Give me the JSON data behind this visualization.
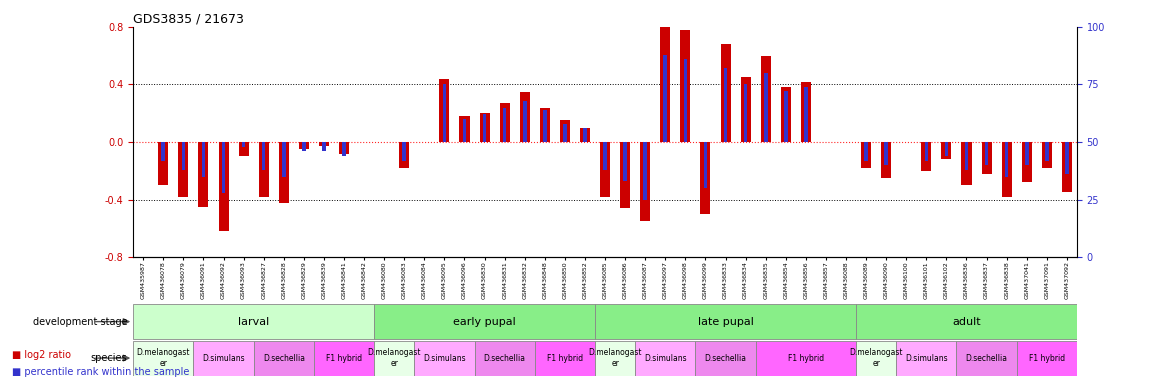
{
  "title": "GDS3835 / 21673",
  "samples": [
    "GSM435987",
    "GSM436078",
    "GSM436079",
    "GSM436091",
    "GSM436092",
    "GSM436093",
    "GSM436827",
    "GSM436828",
    "GSM436829",
    "GSM436839",
    "GSM436841",
    "GSM436842",
    "GSM436080",
    "GSM436083",
    "GSM436084",
    "GSM436095",
    "GSM436096",
    "GSM436830",
    "GSM436831",
    "GSM436832",
    "GSM436848",
    "GSM436850",
    "GSM436852",
    "GSM436085",
    "GSM436086",
    "GSM436087",
    "GSM436097",
    "GSM436098",
    "GSM436099",
    "GSM436833",
    "GSM436834",
    "GSM436835",
    "GSM436854",
    "GSM436856",
    "GSM436857",
    "GSM436088",
    "GSM436089",
    "GSM436090",
    "GSM436100",
    "GSM436101",
    "GSM436102",
    "GSM436836",
    "GSM436837",
    "GSM436838",
    "GSM437041",
    "GSM437091",
    "GSM437092"
  ],
  "log2_ratio": [
    0.0,
    -0.3,
    -0.38,
    -0.45,
    -0.62,
    -0.1,
    -0.38,
    -0.42,
    -0.05,
    -0.03,
    -0.08,
    0.0,
    0.0,
    -0.18,
    0.0,
    0.44,
    0.18,
    0.2,
    0.27,
    0.35,
    0.24,
    0.15,
    0.1,
    -0.38,
    -0.46,
    -0.55,
    0.82,
    0.78,
    -0.5,
    0.68,
    0.45,
    0.6,
    0.38,
    0.42,
    0.0,
    0.0,
    -0.18,
    -0.25,
    0.0,
    -0.2,
    -0.12,
    -0.3,
    -0.22,
    -0.38,
    -0.28,
    -0.18,
    -0.35
  ],
  "percentile": [
    50,
    42,
    38,
    35,
    28,
    48,
    38,
    35,
    46,
    46,
    44,
    50,
    50,
    42,
    50,
    75,
    60,
    62,
    65,
    68,
    64,
    58,
    56,
    38,
    33,
    25,
    88,
    86,
    30,
    82,
    75,
    80,
    72,
    74,
    50,
    50,
    42,
    40,
    50,
    42,
    44,
    38,
    40,
    35,
    40,
    42,
    36
  ],
  "bar_color_red": "#cc0000",
  "bar_color_blue": "#3333cc",
  "ylim": [
    -0.8,
    0.8
  ],
  "y2lim": [
    0,
    100
  ],
  "yticks_left": [
    -0.8,
    -0.4,
    0.0,
    0.4,
    0.8
  ],
  "yticks_right": [
    0,
    25,
    50,
    75,
    100
  ],
  "red_bar_width": 0.5,
  "blue_bar_width": 0.18,
  "dev_stages": [
    {
      "label": "larval",
      "start": 0,
      "end": 12,
      "color": "#ccffcc"
    },
    {
      "label": "early pupal",
      "start": 12,
      "end": 23,
      "color": "#88ee88"
    },
    {
      "label": "late pupal",
      "start": 23,
      "end": 36,
      "color": "#88ee88"
    },
    {
      "label": "adult",
      "start": 36,
      "end": 47,
      "color": "#88ee88"
    }
  ],
  "species_groups": [
    {
      "label": "D.melanogast\ner",
      "start": 0,
      "end": 3,
      "type": "melano"
    },
    {
      "label": "D.simulans",
      "start": 3,
      "end": 6,
      "type": "simul"
    },
    {
      "label": "D.sechellia",
      "start": 6,
      "end": 9,
      "type": "sechel"
    },
    {
      "label": "F1 hybrid",
      "start": 9,
      "end": 12,
      "type": "hybrid"
    },
    {
      "label": "D.melanogast\ner",
      "start": 12,
      "end": 14,
      "type": "melano"
    },
    {
      "label": "D.simulans",
      "start": 14,
      "end": 17,
      "type": "simul"
    },
    {
      "label": "D.sechellia",
      "start": 17,
      "end": 20,
      "type": "sechel"
    },
    {
      "label": "F1 hybrid",
      "start": 20,
      "end": 23,
      "type": "hybrid"
    },
    {
      "label": "D.melanogast\ner",
      "start": 23,
      "end": 25,
      "type": "melano"
    },
    {
      "label": "D.simulans",
      "start": 25,
      "end": 28,
      "type": "simul"
    },
    {
      "label": "D.sechellia",
      "start": 28,
      "end": 31,
      "type": "sechel"
    },
    {
      "label": "F1 hybrid",
      "start": 31,
      "end": 36,
      "type": "hybrid"
    },
    {
      "label": "D.melanogast\ner",
      "start": 36,
      "end": 38,
      "type": "melano"
    },
    {
      "label": "D.simulans",
      "start": 38,
      "end": 41,
      "type": "simul"
    },
    {
      "label": "D.sechellia",
      "start": 41,
      "end": 44,
      "type": "sechel"
    },
    {
      "label": "F1 hybrid",
      "start": 44,
      "end": 47,
      "type": "hybrid"
    }
  ],
  "species_colors": {
    "melano": "#e8ffe8",
    "simul": "#ffaaff",
    "sechel": "#ee88ee",
    "hybrid": "#ff66ff"
  }
}
